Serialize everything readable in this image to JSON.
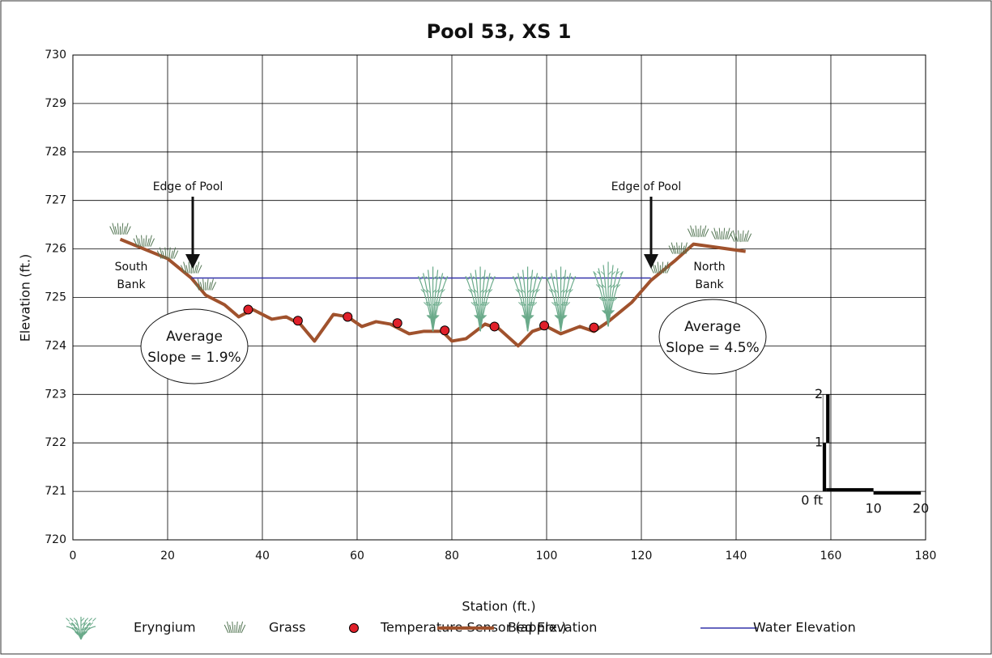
{
  "chart_data": {
    "type": "line",
    "title": "Pool 53, XS 1",
    "x_label": "Station (ft.)",
    "y_label": "Elevation (ft.)",
    "xlim": [
      0,
      180
    ],
    "xticks": [
      0,
      20,
      40,
      60,
      80,
      100,
      120,
      140,
      160,
      180
    ],
    "ylim": [
      720,
      730
    ],
    "yticks": [
      720,
      721,
      722,
      723,
      724,
      725,
      726,
      727,
      728,
      729,
      730
    ],
    "grid": true,
    "series": [
      {
        "name": "Bed Elevation",
        "color": "#a0522d",
        "x": [
          10,
          20,
          25,
          28,
          32,
          35,
          38,
          42,
          45,
          48,
          51,
          55,
          58,
          61,
          64,
          67,
          71,
          74,
          78,
          80,
          83,
          87,
          90,
          94,
          97,
          100,
          103,
          107,
          110,
          113,
          118,
          122,
          127,
          131,
          142
        ],
        "values": [
          726.2,
          725.8,
          725.4,
          725.05,
          724.85,
          724.6,
          724.75,
          724.55,
          724.6,
          724.45,
          724.1,
          724.65,
          724.6,
          724.4,
          724.5,
          724.45,
          724.25,
          724.3,
          724.3,
          724.1,
          724.15,
          724.45,
          724.35,
          724.0,
          724.3,
          724.4,
          724.25,
          724.4,
          724.3,
          724.5,
          724.9,
          725.35,
          725.75,
          726.1,
          725.95
        ]
      },
      {
        "name": "Water Elevation",
        "color": "#3333aa",
        "x": [
          25,
          122
        ],
        "values": [
          725.4,
          725.4
        ]
      },
      {
        "name": "Temperature Sensor (apprx.)",
        "color": "#e0202a",
        "x": [
          37,
          47.5,
          58,
          68.5,
          78.5,
          89,
          99.5,
          110
        ],
        "values": [
          724.75,
          724.52,
          724.6,
          724.47,
          724.32,
          724.4,
          724.42,
          724.38
        ]
      },
      {
        "name": "Eryngium",
        "color": "#6aaa8a",
        "x": [
          76,
          86,
          96,
          103,
          113
        ],
        "values": [
          724.3,
          724.3,
          724.3,
          724.3,
          724.4
        ]
      },
      {
        "name": "Grass",
        "color": "#557755",
        "x": [
          10,
          15,
          20,
          25,
          28,
          124,
          128,
          132,
          137,
          141
        ],
        "values": [
          726.3,
          726.05,
          725.8,
          725.5,
          725.15,
          725.5,
          725.9,
          726.25,
          726.2,
          726.15
        ]
      }
    ],
    "annotations": [
      {
        "text": "Edge of Pool"
      },
      {
        "text": "Edge of Pool"
      },
      {
        "lines": [
          "South",
          "Bank"
        ]
      },
      {
        "lines": [
          "North",
          "Bank"
        ]
      },
      {
        "lines": [
          "Average",
          "Slope = 1.9%"
        ]
      },
      {
        "lines": [
          "Average",
          "Slope = 4.5%"
        ]
      }
    ],
    "scale_bar": {
      "vertical_ticks": [
        {
          "value": 0,
          "label": "0 ft"
        },
        1,
        2
      ],
      "horizontal_ticks": [
        10,
        20
      ]
    }
  }
}
